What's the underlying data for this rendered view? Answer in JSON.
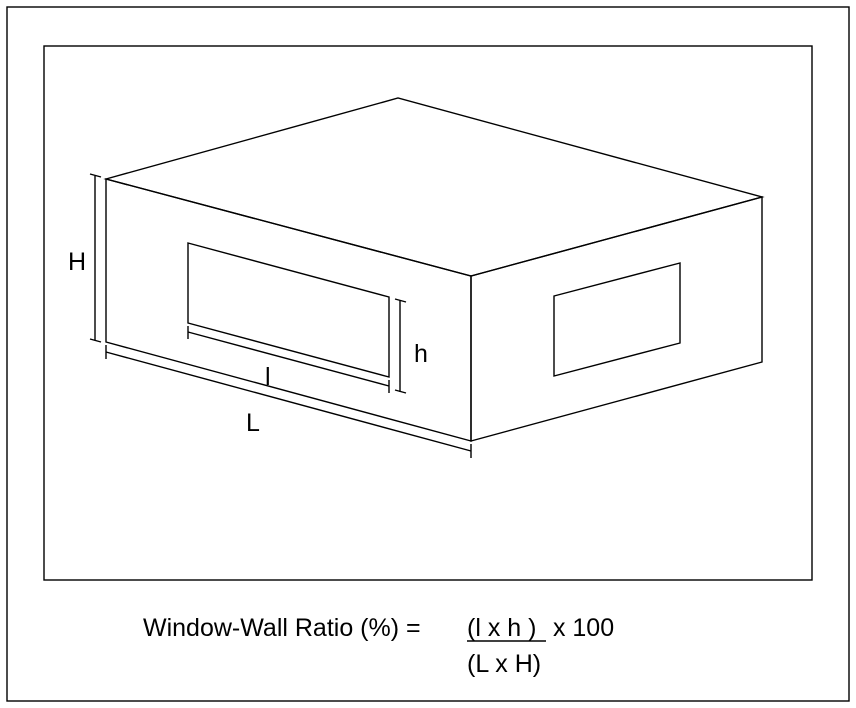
{
  "dimension_labels": {
    "wall_height": "H",
    "wall_length": "L",
    "window_height": "h",
    "window_length": "l"
  },
  "formula": {
    "prefix": "Window-Wall Ratio (%) = ",
    "numerator": "(l x h )",
    "suffix": " x 100",
    "denominator": "(L x H)"
  }
}
